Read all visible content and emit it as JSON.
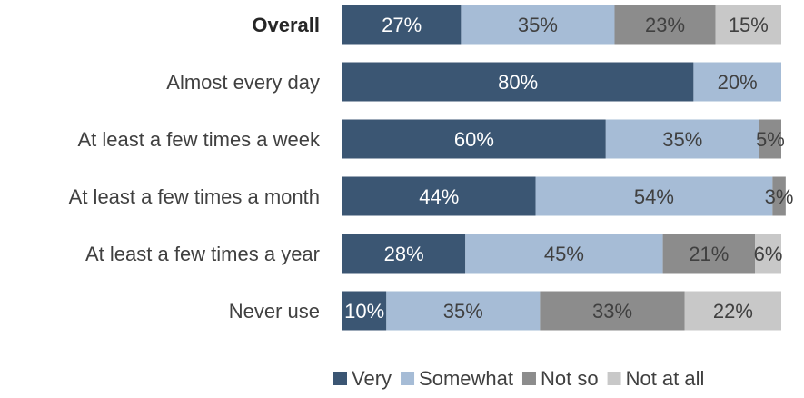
{
  "chart_data": {
    "type": "bar",
    "orientation": "horizontal",
    "stacked": true,
    "percent_stacked": true,
    "categories": [
      "Overall",
      "Almost every day",
      "At least a few times a week",
      "At least a few times a month",
      "At least a few times a year",
      "Never use"
    ],
    "category_bold": [
      true,
      false,
      false,
      false,
      false,
      false
    ],
    "series": [
      {
        "name": "Very",
        "color": "#3b5673",
        "label_color": "#ffffff",
        "values": [
          27,
          80,
          60,
          44,
          28,
          10
        ]
      },
      {
        "name": "Somewhat",
        "color": "#a6bcd6",
        "label_color": "#404040",
        "values": [
          35,
          20,
          35,
          54,
          45,
          35
        ]
      },
      {
        "name": "Not so",
        "color": "#8c8c8c",
        "label_color": "#404040",
        "values": [
          23,
          0,
          5,
          3,
          21,
          33
        ]
      },
      {
        "name": "Not at all",
        "color": "#c8c8c8",
        "label_color": "#404040",
        "values": [
          15,
          0,
          0,
          0,
          6,
          22
        ]
      }
    ],
    "labels": [
      [
        "27%",
        "35%",
        "23%",
        "15%"
      ],
      [
        "80%",
        "20%",
        "",
        ""
      ],
      [
        "60%",
        "35%",
        "5%",
        ""
      ],
      [
        "44%",
        "54%",
        "3%",
        ""
      ],
      [
        "28%",
        "45%",
        "21%",
        "6%"
      ],
      [
        "10%",
        "35%",
        "33%",
        "22%"
      ]
    ],
    "xlim": [
      0,
      100
    ],
    "grid": false,
    "legend_position": "bottom-right"
  }
}
